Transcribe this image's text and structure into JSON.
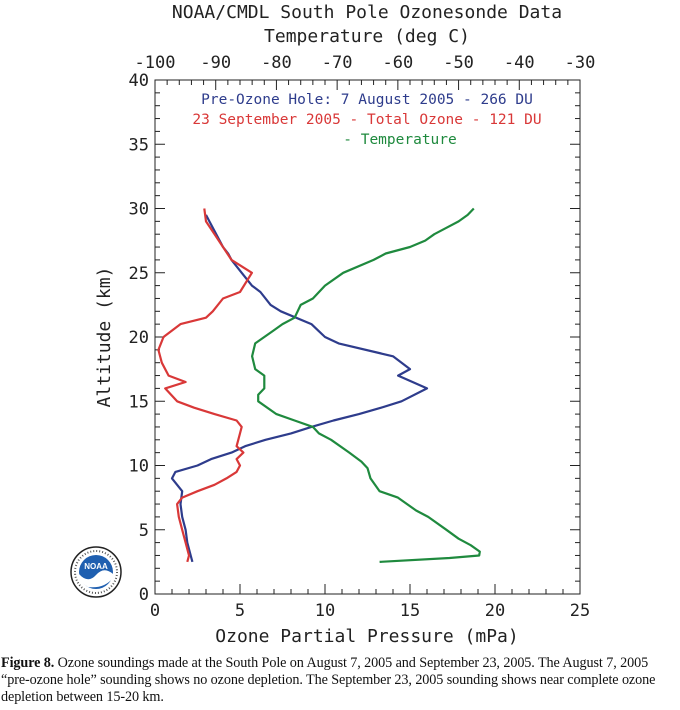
{
  "chart_data": {
    "type": "line",
    "title": "NOAA/CMDL South Pole Ozonesonde Data",
    "top_axis": {
      "label": "Temperature (deg C)",
      "range": [
        -100,
        -30
      ],
      "ticks": [
        -100,
        -90,
        -80,
        -70,
        -60,
        -50,
        -40,
        -30
      ]
    },
    "xlabel": "Ozone Partial Pressure (mPa)",
    "xlim": [
      0,
      25
    ],
    "xticks": [
      0,
      5,
      10,
      15,
      20,
      25
    ],
    "ylabel": "Altitude (km)",
    "ylim": [
      0,
      40
    ],
    "yticks": [
      0,
      5,
      10,
      15,
      20,
      25,
      30,
      35,
      40
    ],
    "grid": false,
    "legend_position": "top-center",
    "series": [
      {
        "name": "Pre-Ozone Hole: 7 August 2005 - 266 DU",
        "axis": "ozone",
        "color": "#2e3c8c",
        "points": [
          [
            2.2,
            2.5
          ],
          [
            2.1,
            3.0
          ],
          [
            1.9,
            4.0
          ],
          [
            1.8,
            5.0
          ],
          [
            1.6,
            6.0
          ],
          [
            1.5,
            7.0
          ],
          [
            1.6,
            8.0
          ],
          [
            1.0,
            9.0
          ],
          [
            1.2,
            9.5
          ],
          [
            2.5,
            10.0
          ],
          [
            3.3,
            10.5
          ],
          [
            4.5,
            11.0
          ],
          [
            5.3,
            11.5
          ],
          [
            6.5,
            12.0
          ],
          [
            8.0,
            12.5
          ],
          [
            9.2,
            13.0
          ],
          [
            10.5,
            13.5
          ],
          [
            12.0,
            14.0
          ],
          [
            13.3,
            14.5
          ],
          [
            14.5,
            15.0
          ],
          [
            16.0,
            16.0
          ],
          [
            14.3,
            17.0
          ],
          [
            15.0,
            17.5
          ],
          [
            14.0,
            18.5
          ],
          [
            10.8,
            19.5
          ],
          [
            10.0,
            20.0
          ],
          [
            9.6,
            20.5
          ],
          [
            9.2,
            21.0
          ],
          [
            7.4,
            22.0
          ],
          [
            6.8,
            22.5
          ],
          [
            6.2,
            23.5
          ],
          [
            5.7,
            24.0
          ],
          [
            5.1,
            25.0
          ],
          [
            4.5,
            26.0
          ],
          [
            4.3,
            26.5
          ],
          [
            4.0,
            27.0
          ],
          [
            3.6,
            28.0
          ],
          [
            3.2,
            29.0
          ],
          [
            3.0,
            29.5
          ]
        ]
      },
      {
        "name": "23 September 2005 - Total Ozone - 121 DU",
        "axis": "ozone",
        "color": "#d93838",
        "points": [
          [
            1.9,
            2.5
          ],
          [
            2.0,
            3.0
          ],
          [
            1.8,
            4.0
          ],
          [
            1.6,
            5.0
          ],
          [
            1.4,
            6.0
          ],
          [
            1.3,
            7.0
          ],
          [
            1.6,
            7.5
          ],
          [
            2.5,
            8.0
          ],
          [
            3.5,
            8.5
          ],
          [
            4.2,
            9.0
          ],
          [
            4.8,
            9.5
          ],
          [
            5.0,
            10.0
          ],
          [
            4.8,
            10.5
          ],
          [
            5.2,
            11.0
          ],
          [
            4.8,
            11.5
          ],
          [
            5.0,
            12.5
          ],
          [
            5.1,
            13.0
          ],
          [
            4.8,
            13.5
          ],
          [
            3.5,
            14.0
          ],
          [
            2.3,
            14.5
          ],
          [
            1.3,
            15.0
          ],
          [
            0.6,
            16.0
          ],
          [
            1.8,
            16.5
          ],
          [
            0.8,
            17.0
          ],
          [
            0.4,
            18.0
          ],
          [
            0.2,
            19.0
          ],
          [
            0.5,
            20.0
          ],
          [
            1.5,
            21.0
          ],
          [
            3.0,
            21.5
          ],
          [
            3.4,
            22.0
          ],
          [
            4.0,
            23.0
          ],
          [
            5.0,
            23.5
          ],
          [
            5.7,
            25.0
          ],
          [
            4.5,
            26.0
          ],
          [
            4.0,
            27.0
          ],
          [
            3.5,
            28.0
          ],
          [
            3.0,
            29.0
          ],
          [
            2.9,
            30.0
          ]
        ]
      },
      {
        "name": "- Temperature",
        "axis": "temperature",
        "color": "#1f8a3e",
        "points": [
          [
            -63.0,
            2.5
          ],
          [
            -51.5,
            2.8
          ],
          [
            -46.6,
            3.0
          ],
          [
            -46.5,
            3.3
          ],
          [
            -48.0,
            3.8
          ],
          [
            -50.0,
            4.3
          ],
          [
            -52.0,
            5.0
          ],
          [
            -55.0,
            6.0
          ],
          [
            -57.0,
            6.5
          ],
          [
            -60.0,
            7.5
          ],
          [
            -63.0,
            8.0
          ],
          [
            -64.5,
            9.0
          ],
          [
            -65.0,
            9.8
          ],
          [
            -66.0,
            10.3
          ],
          [
            -68.0,
            11.0
          ],
          [
            -71.0,
            12.0
          ],
          [
            -73.0,
            12.5
          ],
          [
            -74.0,
            13.0
          ],
          [
            -77.0,
            13.5
          ],
          [
            -80.0,
            14.0
          ],
          [
            -83.0,
            15.0
          ],
          [
            -83.0,
            15.5
          ],
          [
            -82.0,
            16.0
          ],
          [
            -82.0,
            17.0
          ],
          [
            -83.5,
            17.5
          ],
          [
            -84.0,
            18.5
          ],
          [
            -83.5,
            19.5
          ],
          [
            -82.0,
            20.0
          ],
          [
            -80.5,
            20.5
          ],
          [
            -79.0,
            21.0
          ],
          [
            -77.0,
            21.5
          ],
          [
            -76.0,
            22.5
          ],
          [
            -74.0,
            23.0
          ],
          [
            -72.0,
            24.0
          ],
          [
            -69.0,
            25.0
          ],
          [
            -64.0,
            26.0
          ],
          [
            -62.0,
            26.5
          ],
          [
            -58.0,
            27.0
          ],
          [
            -55.5,
            27.5
          ],
          [
            -54.0,
            28.0
          ],
          [
            -52.0,
            28.5
          ],
          [
            -50.0,
            29.0
          ],
          [
            -48.5,
            29.5
          ],
          [
            -47.5,
            30.0
          ]
        ]
      }
    ]
  },
  "caption": {
    "label": "Figure 8.",
    "text": " Ozone soundings made at the South Pole on August 7, 2005 and September 23, 2005. The August 7, 2005  “pre-ozone hole” sounding shows no ozone depletion.  The September 23, 2005 sounding shows near complete ozone depletion between 15-20 km."
  },
  "logo": {
    "text": "NOAA",
    "icon": "noaa-logo-icon"
  }
}
